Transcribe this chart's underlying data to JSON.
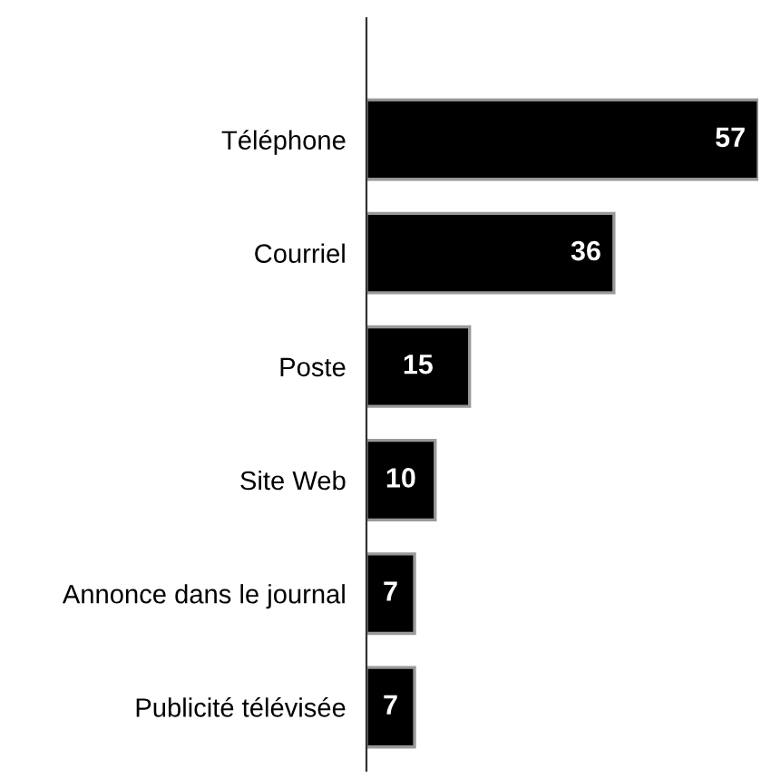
{
  "chart_data": {
    "type": "bar",
    "orientation": "horizontal",
    "categories": [
      "Téléphone",
      "Courriel",
      "Poste",
      "Site Web",
      "Annonce dans le journal",
      "Publicité télévisée"
    ],
    "values": [
      57,
      36,
      15,
      10,
      7,
      7
    ],
    "color": "#000000",
    "data_labels": true,
    "grid": false,
    "legend": false
  }
}
